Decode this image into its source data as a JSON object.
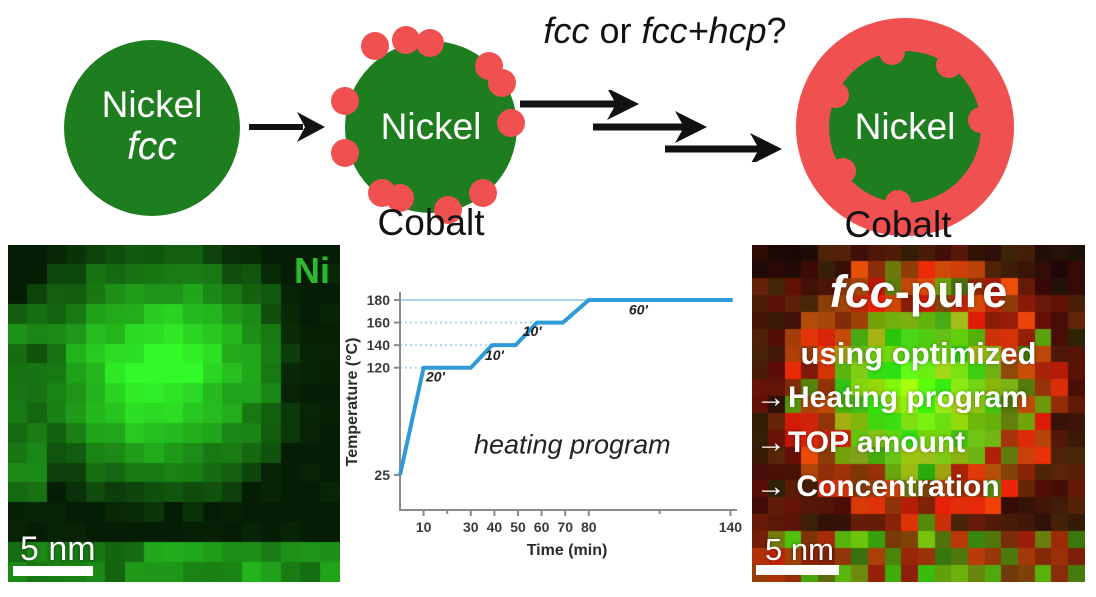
{
  "colors": {
    "nickel_green": "#1e7d1f",
    "cobalt_red": "#f05050",
    "ni_tag_green": "#2eb82e",
    "chart_line_blue": "#2e9bd8",
    "chart_guide_blue": "#a9d7ef",
    "axis_gray": "#8a8a8a",
    "text_dark": "#1a1a1a"
  },
  "top": {
    "circle1": {
      "line1": "Nickel",
      "line2": "fcc"
    },
    "circle2": {
      "label": "Nickel",
      "sublabel": "Cobalt"
    },
    "circle3": {
      "label": "Nickel",
      "sublabel": "Cobalt"
    },
    "question": [
      {
        "t": "fcc",
        "i": 1
      },
      {
        "t": " or "
      },
      {
        "t": "fcc+hcp",
        "i": 1
      },
      {
        "t": "?"
      }
    ]
  },
  "left_map": {
    "element_label": "Ni",
    "scale_label": "5 nm"
  },
  "right_map": {
    "headline": [
      {
        "t": "fcc",
        "i": 1
      },
      {
        "t": "-pure"
      }
    ],
    "line2": "using optimized",
    "bullet_arrow": "→",
    "bullets": [
      "Heating program",
      "TOP amount",
      "Concentration"
    ],
    "scale_label": "5 nm"
  },
  "chart_data": {
    "type": "line",
    "title": "",
    "xlabel": "Time (min)",
    "ylabel": "Temperature (°C)",
    "xlim": [
      0,
      143
    ],
    "ylim": [
      -6,
      187
    ],
    "grid": false,
    "legend": "none",
    "x_ticks": [
      10,
      30,
      40,
      50,
      60,
      70,
      80,
      140
    ],
    "x_minor_ticks": [
      20,
      110
    ],
    "y_ticks": [
      25,
      120,
      140,
      160,
      180
    ],
    "series": [
      {
        "name": "heating program",
        "x": [
          0,
          10,
          30,
          39,
          49,
          58,
          69,
          80,
          141
        ],
        "y": [
          25,
          120,
          120,
          140,
          140,
          160,
          160,
          180,
          180
        ]
      }
    ],
    "guide_lines": [
      {
        "y": 180,
        "x_start": 0,
        "x_end": 141,
        "style": "solid"
      },
      {
        "y": 160,
        "x_start": 0,
        "x_end": 58,
        "style": "dotted"
      },
      {
        "y": 140,
        "x_start": 0,
        "x_end": 39,
        "style": "dotted"
      },
      {
        "y": 120,
        "x_start": 0,
        "x_end": 10,
        "style": "dotted"
      }
    ],
    "annotations": [
      {
        "text": "20'",
        "x": 15,
        "y": 108,
        "style": "step"
      },
      {
        "text": "10'",
        "x": 40,
        "y": 127,
        "style": "step"
      },
      {
        "text": "10'",
        "x": 56,
        "y": 148,
        "style": "step"
      },
      {
        "text": "60'",
        "x": 101,
        "y": 167,
        "style": "step"
      },
      {
        "text": "heating program",
        "x": 73,
        "y": 44,
        "style": "title"
      }
    ]
  }
}
